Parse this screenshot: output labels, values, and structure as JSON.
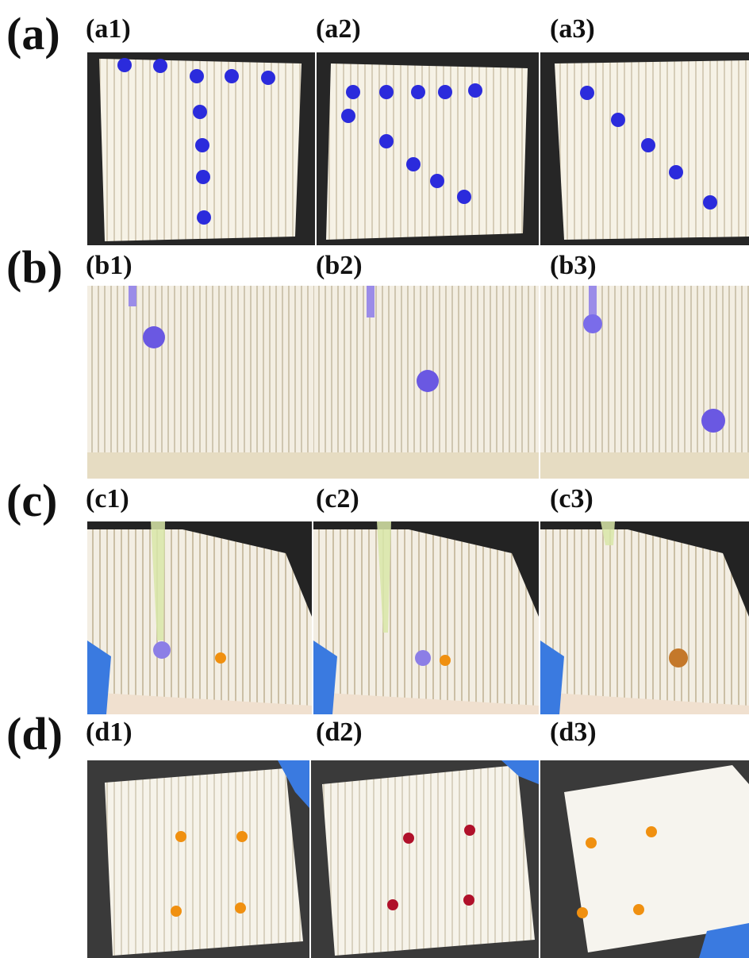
{
  "rows": [
    {
      "label": "(a)",
      "panels": [
        "(a1)",
        "(a2)",
        "(a3)"
      ]
    },
    {
      "label": "(b)",
      "panels": [
        "(b1)",
        "(b2)",
        "(b3)"
      ]
    },
    {
      "label": "(c)",
      "panels": [
        "(c1)",
        "(c2)",
        "(c3)"
      ]
    },
    {
      "label": "(d)",
      "panels": [
        "(d1)",
        "(d2)",
        "(d3)"
      ]
    }
  ],
  "colors": {
    "background": "#ffffff",
    "surface": "#f4efe2",
    "ridge": "#d8cfbb",
    "blue_droplet": "#2a2ae0",
    "purple_droplet": "#7060e8",
    "orange_droplet": "#f09010",
    "red_droplet": "#b0102a",
    "glove": "#3a7ae0"
  }
}
